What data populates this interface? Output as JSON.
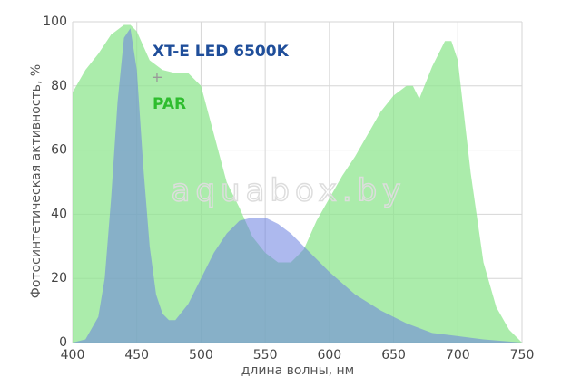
{
  "chart_data": {
    "type": "area",
    "x_label": "длина волны, нм",
    "y_label": "Фотосинтетическая активность, %",
    "legend_separator": "+",
    "watermark": "aquabox.by",
    "xlim": [
      400,
      750
    ],
    "xticks": [
      400,
      450,
      500,
      550,
      600,
      650,
      700,
      750
    ],
    "ylim": [
      0,
      100
    ],
    "yticks": [
      0,
      20,
      40,
      60,
      80,
      100
    ],
    "grid": true,
    "series": [
      {
        "name": "PAR",
        "color": "#8fe68f",
        "text_color": "#2ebd2e",
        "x": [
          400,
          410,
          420,
          430,
          440,
          445,
          450,
          460,
          470,
          480,
          490,
          500,
          510,
          520,
          530,
          540,
          550,
          560,
          570,
          580,
          590,
          600,
          610,
          620,
          630,
          640,
          650,
          660,
          665,
          670,
          680,
          690,
          695,
          700,
          710,
          720,
          730,
          740,
          750
        ],
        "values": [
          78,
          85,
          90,
          96,
          99,
          99,
          97,
          88,
          85,
          84,
          84,
          80,
          65,
          50,
          42,
          33,
          28,
          25,
          25,
          29,
          38,
          45,
          52,
          58,
          65,
          72,
          77,
          80,
          80,
          76,
          86,
          94,
          94,
          88,
          53,
          25,
          11,
          4,
          0
        ]
      },
      {
        "name": "XT-E LED 6500K",
        "color": "#6a7fe0",
        "text_color": "#1f4e9a",
        "x": [
          400,
          410,
          420,
          425,
          430,
          435,
          440,
          445,
          450,
          455,
          460,
          465,
          470,
          475,
          480,
          490,
          500,
          510,
          520,
          530,
          540,
          550,
          560,
          570,
          580,
          600,
          620,
          640,
          660,
          680,
          700,
          720,
          750
        ],
        "values": [
          0,
          1,
          8,
          20,
          45,
          75,
          95,
          98,
          85,
          55,
          30,
          15,
          9,
          7,
          7,
          12,
          20,
          28,
          34,
          38,
          39,
          39,
          37,
          34,
          30,
          22,
          15,
          10,
          6,
          3,
          2,
          1,
          0
        ]
      }
    ]
  }
}
